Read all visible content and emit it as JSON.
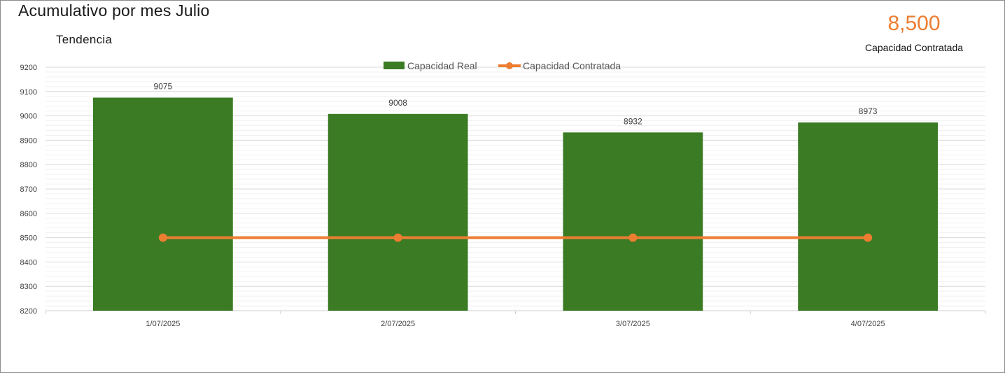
{
  "header": {
    "title": "Acumulativo por mes Julio",
    "subtitle": "Tendencia"
  },
  "kpi": {
    "value": "8,500",
    "label": "Capacidad Contratada",
    "color": "#ed7d31"
  },
  "chart_data": {
    "type": "bar",
    "categories": [
      "1/07/2025",
      "2/07/2025",
      "3/07/2025",
      "4/07/2025"
    ],
    "series": [
      {
        "name": "Capacidad Real",
        "kind": "bar",
        "color": "#3a7b24",
        "values": [
          9075,
          9008,
          8932,
          8973
        ]
      },
      {
        "name": "Capacidad Contratada",
        "kind": "line",
        "color": "#ed7d31",
        "values": [
          8500,
          8500,
          8500,
          8500
        ]
      }
    ],
    "ylim": [
      8200,
      9200
    ],
    "yticks": [
      8200,
      8300,
      8400,
      8500,
      8600,
      8700,
      8800,
      8900,
      9000,
      9100,
      9200
    ],
    "data_labels": [
      "9075",
      "9008",
      "8932",
      "8973"
    ],
    "grid": true,
    "legend": "top-center"
  }
}
